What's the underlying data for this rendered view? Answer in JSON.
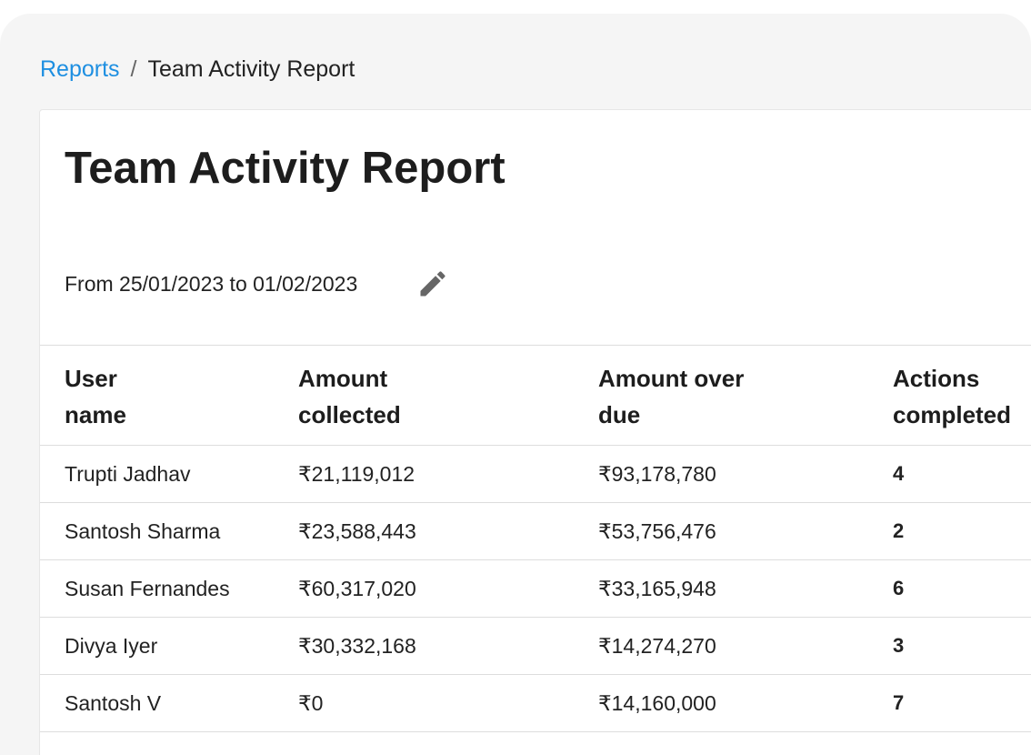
{
  "breadcrumb": {
    "link": "Reports",
    "separator": "/",
    "current": "Team Activity Report"
  },
  "title": "Team Activity Report",
  "date_range": "From 25/01/2023 to 01/02/2023",
  "table": {
    "headers": [
      "User name",
      "Amount collected",
      "Amount over due",
      "Actions completed"
    ],
    "rows": [
      [
        "Trupti Jadhav",
        "₹21,119,012",
        "₹93,178,780",
        "4"
      ],
      [
        "Santosh Sharma",
        "₹23,588,443",
        "₹53,756,476",
        "2"
      ],
      [
        "Susan Fernandes",
        "₹60,317,020",
        "₹33,165,948",
        "6"
      ],
      [
        "Divya Iyer",
        "₹30,332,168",
        "₹14,274,270",
        "3"
      ],
      [
        "Santosh V",
        "₹0",
        "₹14,160,000",
        "7"
      ]
    ]
  }
}
